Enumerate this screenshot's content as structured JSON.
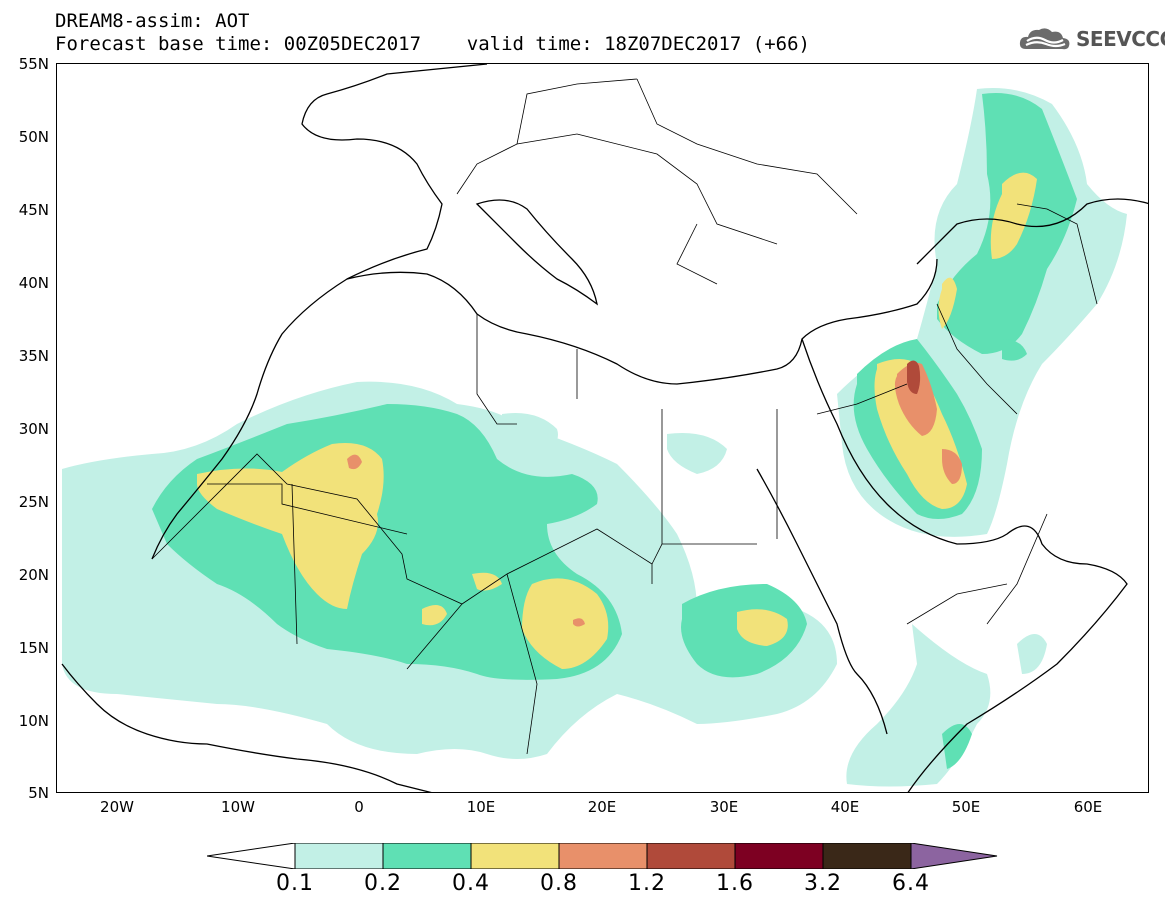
{
  "header": {
    "line1": "DREAM8-assim: AOT",
    "line2": "Forecast base time: 00Z05DEC2017    valid time: 18Z07DEC2017 (+66)"
  },
  "logo": {
    "text": "SEEVCCC",
    "icon": "cloud-icon"
  },
  "map": {
    "projection": "lat-lon",
    "lon_range": [
      -25,
      65
    ],
    "lat_range": [
      5,
      55
    ],
    "lat_labels": [
      "55N",
      "50N",
      "45N",
      "40N",
      "35N",
      "30N",
      "25N",
      "20N",
      "15N",
      "10N",
      "5N"
    ],
    "lon_labels": [
      "20W",
      "10W",
      "0",
      "10E",
      "20E",
      "30E",
      "40E",
      "50E",
      "60E"
    ]
  },
  "colorbar": {
    "labels": [
      "0.1",
      "0.2",
      "0.4",
      "0.8",
      "1.2",
      "1.6",
      "3.2",
      "6.4"
    ],
    "colors": [
      "#ffffff",
      "#c2f0e6",
      "#5fe0b4",
      "#f2e27a",
      "#e8906a",
      "#b04a3a",
      "#7d0022",
      "#3a2818",
      "#8c64a0"
    ]
  }
}
